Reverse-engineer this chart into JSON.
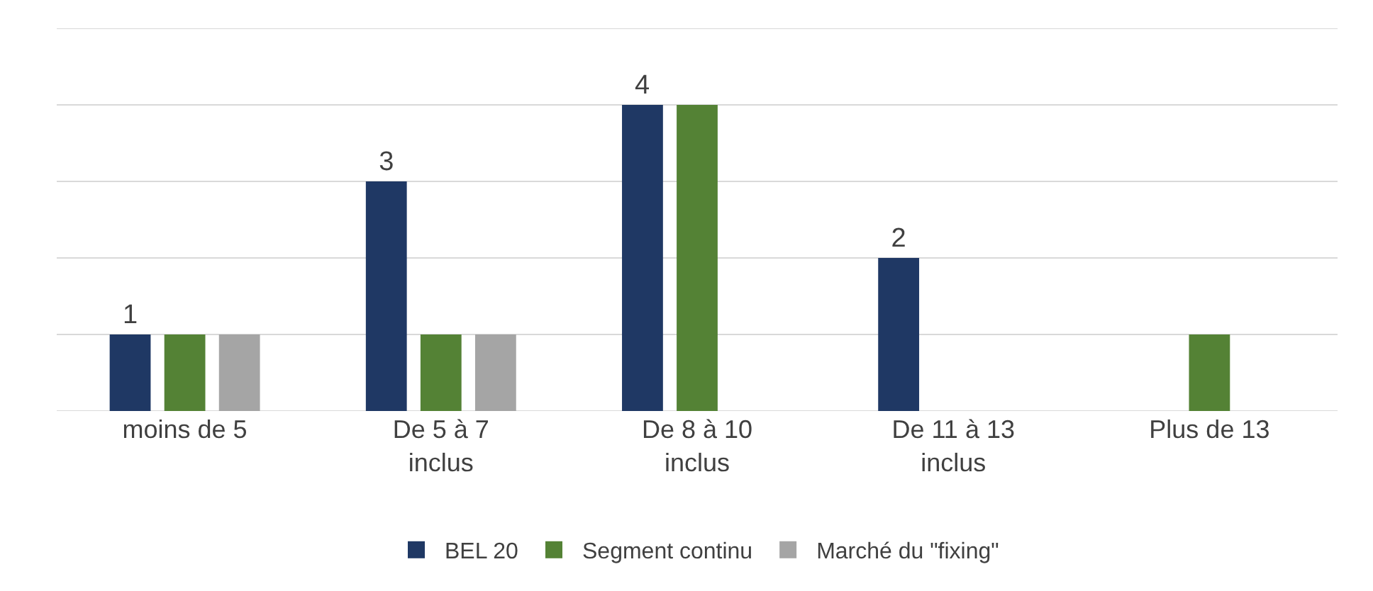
{
  "chart_data": {
    "type": "bar",
    "categories": [
      "moins de 5",
      "De 5 à 7 inclus",
      "De 8 à 10 inclus",
      "De 11 à 13 inclus",
      "Plus de 13"
    ],
    "series": [
      {
        "name": "BEL 20",
        "color": "#1f3864",
        "values": [
          1,
          3,
          4,
          2,
          0
        ],
        "value_labels": [
          "1",
          "3",
          "4",
          "2",
          null
        ]
      },
      {
        "name": "Segment continu",
        "color": "#548235",
        "values": [
          1,
          1,
          4,
          0,
          1
        ]
      },
      {
        "name": "Marché du \"fixing\"",
        "color": "#a5a5a5",
        "values": [
          1,
          1,
          0,
          0,
          0
        ]
      }
    ],
    "ylim": [
      0,
      5
    ],
    "yticks": [
      {
        "value": 0,
        "label": null
      },
      {
        "value": 1,
        "label": null
      },
      {
        "value": 2,
        "label": null
      },
      {
        "value": 3,
        "label": null
      },
      {
        "value": 4,
        "label": null
      },
      {
        "value": 5,
        "label": null
      }
    ],
    "tick_labels": "x",
    "grid": "y",
    "legend": "bottom"
  }
}
